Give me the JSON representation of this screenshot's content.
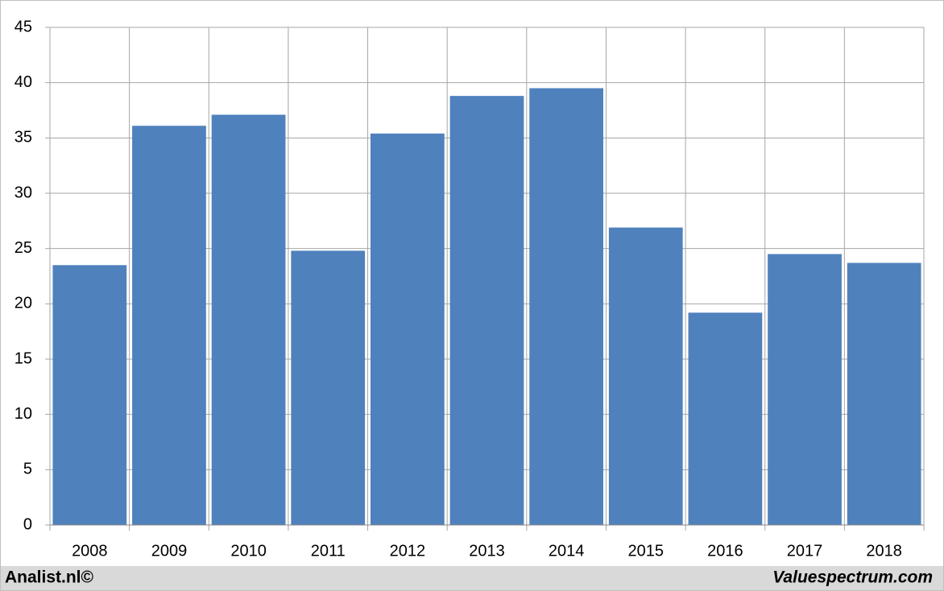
{
  "chart_data": {
    "type": "bar",
    "categories": [
      "2008",
      "2009",
      "2010",
      "2011",
      "2012",
      "2013",
      "2014",
      "2015",
      "2016",
      "2017",
      "2018"
    ],
    "values": [
      23.5,
      36.1,
      37.1,
      24.8,
      35.4,
      38.8,
      39.5,
      26.9,
      19.2,
      24.5,
      23.7
    ],
    "color": "#4f81bd",
    "ylim": [
      0,
      45
    ],
    "yticks": [
      0,
      5,
      10,
      15,
      20,
      25,
      30,
      35,
      40,
      45
    ],
    "grid": true,
    "credits": [
      "Analist.nl©",
      "Valuespectrum.com"
    ]
  }
}
